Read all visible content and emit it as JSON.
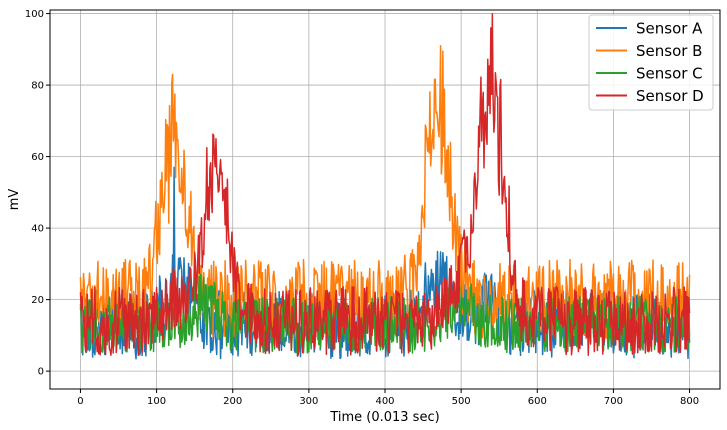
{
  "chart_data": {
    "type": "line",
    "title": "",
    "xlabel": "Time (0.013 sec)",
    "ylabel": "mV",
    "xlim": [
      -40,
      840
    ],
    "ylim": [
      -5,
      101
    ],
    "x_ticks": [
      0,
      100,
      200,
      300,
      400,
      500,
      600,
      700,
      800
    ],
    "y_ticks": [
      0,
      20,
      40,
      60,
      80,
      100
    ],
    "grid": true,
    "legend_position": "top-right",
    "n_samples": 801,
    "series": [
      {
        "name": "Sensor A",
        "color": "#1f77b4",
        "baseline": 13,
        "noise": 12,
        "peaks": [
          {
            "x": 130,
            "height": 12
          },
          {
            "x": 470,
            "height": 12
          },
          {
            "x": 535,
            "height": 6
          }
        ],
        "spikes": [
          {
            "x": 123,
            "y": 57
          }
        ]
      },
      {
        "name": "Sensor B",
        "color": "#ff7f0e",
        "baseline": 20,
        "noise": 14,
        "peaks": [
          {
            "x": 122,
            "height": 45
          },
          {
            "x": 470,
            "height": 55
          }
        ],
        "spikes": [
          {
            "x": 121,
            "y": 83
          },
          {
            "x": 473,
            "y": 91
          }
        ]
      },
      {
        "name": "Sensor C",
        "color": "#2ca02c",
        "baseline": 13,
        "noise": 10,
        "peaks": [
          {
            "x": 160,
            "height": 6
          },
          {
            "x": 500,
            "height": 6
          }
        ],
        "spikes": []
      },
      {
        "name": "Sensor D",
        "color": "#d62728",
        "baseline": 14,
        "noise": 12,
        "peaks": [
          {
            "x": 178,
            "height": 42
          },
          {
            "x": 540,
            "height": 68
          },
          {
            "x": 135,
            "height": 8
          },
          {
            "x": 500,
            "height": 10
          }
        ],
        "spikes": [
          {
            "x": 539,
            "y": 96
          },
          {
            "x": 178,
            "y": 65
          }
        ]
      }
    ]
  }
}
